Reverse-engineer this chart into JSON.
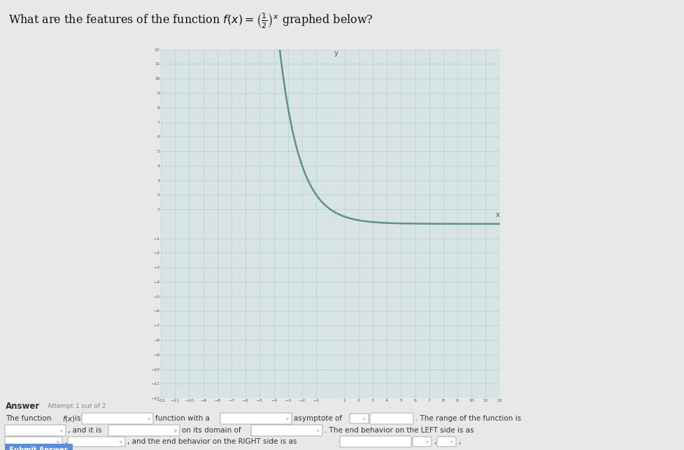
{
  "xmin": -12,
  "xmax": 12,
  "ymin": -12,
  "ymax": 12,
  "curve_color": "#5a9090",
  "curve_linewidth": 1.8,
  "grid_color": "#b8cece",
  "grid_bg": "#dde8e8",
  "axis_color": "#777777",
  "page_bg": "#e8e8e8",
  "graph_bg": "#d8e4e4",
  "answer_bg": "#e8e8e8",
  "submit_bg": "#5b8ed6",
  "submit_text": "#ffffff",
  "title_text": "What are the features of the function",
  "func_label": "f(x) = (1/2)^x",
  "title_suffix": "graphed below?"
}
